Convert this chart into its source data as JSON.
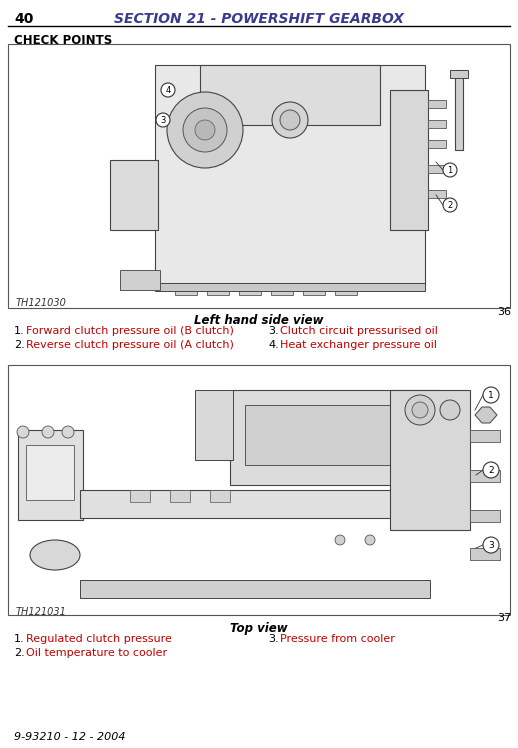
{
  "page_number": "40",
  "section_title": "SECTION 21 - POWERSHIFT GEARBOX",
  "section_title_color": "#3a3a8c",
  "check_points_label": "CHECK POINTS",
  "figure1_label": "TH121030",
  "figure1_number": "36",
  "figure1_view": "Left hand side view",
  "figure1_items": [
    {
      "num": "1.",
      "text": "Forward clutch pressure oil (B clutch)",
      "color": "#c00000"
    },
    {
      "num": "2.",
      "text": "Reverse clutch pressure oil (A clutch)",
      "color": "#c00000"
    },
    {
      "num": "3.",
      "text": "Clutch circuit pressurised oil",
      "color": "#c00000"
    },
    {
      "num": "4.",
      "text": "Heat exchanger pressure oil",
      "color": "#c00000"
    }
  ],
  "figure2_label": "TH121031",
  "figure2_number": "37",
  "figure2_view": "Top view",
  "figure2_items": [
    {
      "num": "1.",
      "text": "Regulated clutch pressure",
      "color": "#c00000"
    },
    {
      "num": "2.",
      "text": "Oil temperature to cooler",
      "color": "#c00000"
    },
    {
      "num": "3.",
      "text": "Pressure from cooler",
      "color": "#c00000"
    }
  ],
  "footer": "9-93210 - 12 - 2004",
  "bg_color": "#ffffff",
  "border_color": "#000000",
  "text_color": "#000000",
  "fig_bg_color": "#ffffff",
  "fig_border_color": "#555555"
}
